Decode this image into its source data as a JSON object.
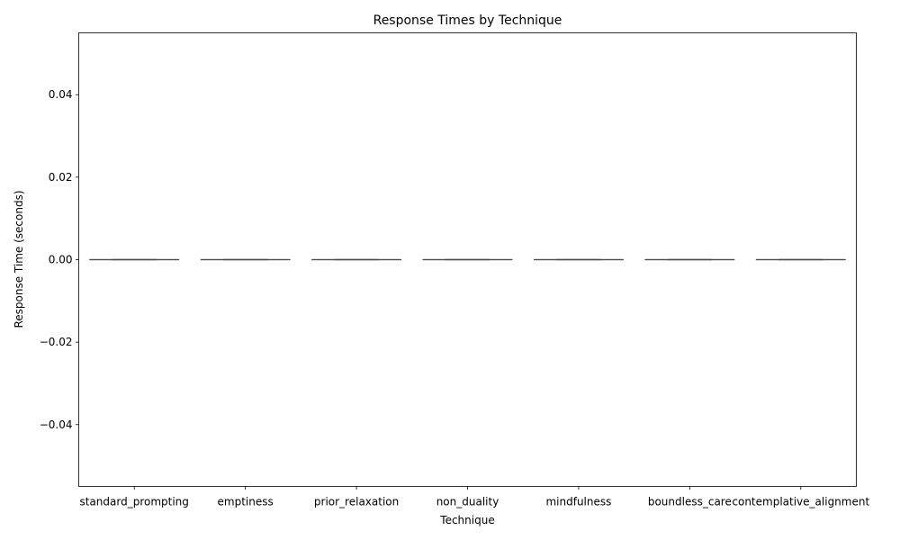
{
  "chart_data": {
    "type": "box",
    "title": "Response Times by Technique",
    "xlabel": "Technique",
    "ylabel": "Response Time (seconds)",
    "ylim": [
      -0.055,
      0.055
    ],
    "yticks": [
      -0.04,
      -0.02,
      0.0,
      0.02,
      0.04
    ],
    "ytick_labels": [
      "−0.04",
      "−0.02",
      "0.00",
      "0.02",
      "0.04"
    ],
    "grid": false,
    "categories": [
      "standard_prompting",
      "emptiness",
      "prior_relaxation",
      "non_duality",
      "mindfulness",
      "boundless_care",
      "contemplative_alignment"
    ],
    "boxes": [
      {
        "min": 0,
        "q1": 0,
        "median": 0,
        "q3": 0,
        "max": 0
      },
      {
        "min": 0,
        "q1": 0,
        "median": 0,
        "q3": 0,
        "max": 0
      },
      {
        "min": 0,
        "q1": 0,
        "median": 0,
        "q3": 0,
        "max": 0
      },
      {
        "min": 0,
        "q1": 0,
        "median": 0,
        "q3": 0,
        "max": 0
      },
      {
        "min": 0,
        "q1": 0,
        "median": 0,
        "q3": 0,
        "max": 0
      },
      {
        "min": 0,
        "q1": 0,
        "median": 0,
        "q3": 0,
        "max": 0
      },
      {
        "min": 0,
        "q1": 0,
        "median": 0,
        "q3": 0,
        "max": 0
      }
    ],
    "colors": {
      "box_line": "#4d4d4d",
      "axis": "#000000"
    }
  }
}
